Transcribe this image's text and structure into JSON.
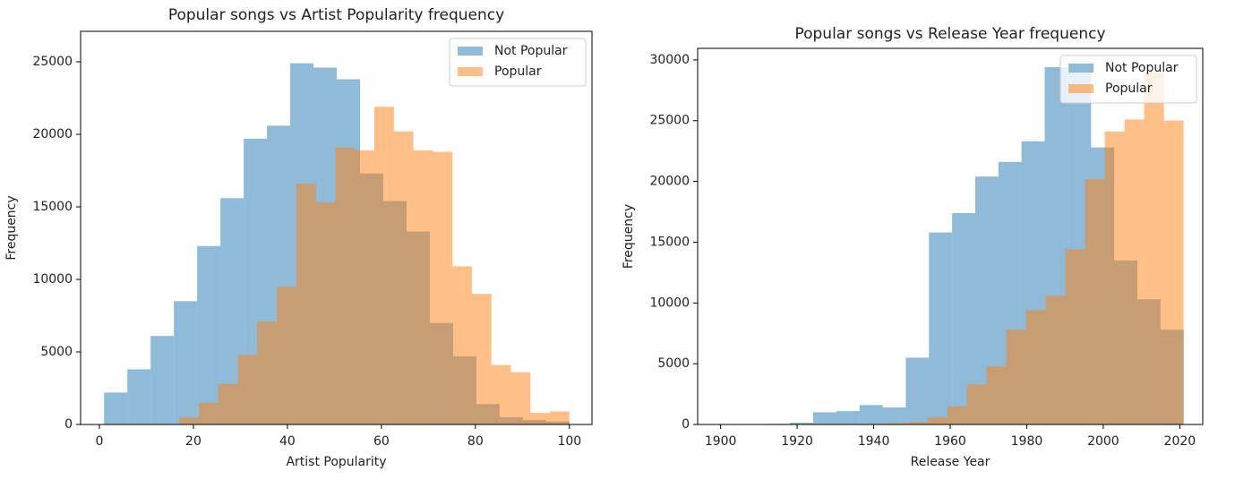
{
  "chart_data": [
    {
      "type": "histogram",
      "title": "Popular songs vs Artist Popularity frequency",
      "x_label": "Artist Popularity",
      "y_label": "Frequency",
      "xlim": [
        -4,
        104.8
      ],
      "xticks": [
        0,
        20,
        40,
        60,
        80,
        100
      ],
      "ylim": [
        0,
        27100
      ],
      "yticks": [
        0,
        5000,
        10000,
        15000,
        20000,
        25000
      ],
      "legend": "upper right",
      "opacity": 0.5,
      "series": [
        {
          "name": "Not Popular",
          "color": "#1f77b4",
          "bins": [
            1,
            5.95,
            10.9,
            15.85,
            20.8,
            25.75,
            30.7,
            35.65,
            40.6,
            45.55,
            50.5,
            55.45,
            60.4,
            65.35,
            70.3,
            75.25,
            80.2,
            85.15,
            90.1,
            95.05,
            100
          ],
          "values": [
            2200,
            3800,
            6100,
            8500,
            12300,
            15600,
            19700,
            20600,
            24900,
            24600,
            23800,
            17300,
            15400,
            13300,
            7000,
            4700,
            1400,
            500,
            300,
            200
          ]
        },
        {
          "name": "Popular",
          "color": "#ff7f0e",
          "bins": [
            17,
            21.15,
            25.3,
            29.45,
            33.6,
            37.75,
            41.9,
            46.05,
            50.2,
            54.35,
            58.5,
            62.65,
            66.8,
            70.95,
            75.1,
            79.25,
            83.4,
            87.55,
            91.7,
            95.85,
            100
          ],
          "values": [
            500,
            1500,
            2800,
            4800,
            7100,
            9500,
            16600,
            15300,
            19100,
            18900,
            21900,
            20200,
            18900,
            18800,
            10900,
            9000,
            4100,
            3600,
            800,
            900
          ]
        }
      ]
    },
    {
      "type": "histogram",
      "title": "Popular songs vs Release Year frequency",
      "x_label": "Release Year",
      "y_label": "Frequency",
      "xlim": [
        1894,
        2026
      ],
      "xticks": [
        1900,
        1920,
        1940,
        1960,
        1980,
        2000,
        2020
      ],
      "ylim": [
        0,
        30950
      ],
      "yticks": [
        0,
        5000,
        10000,
        15000,
        20000,
        25000,
        30000
      ],
      "legend": "upper right",
      "opacity": 0.5,
      "series": [
        {
          "name": "Not Popular",
          "color": "#1f77b4",
          "bins": [
            1900,
            1906.05,
            1912.1,
            1918.15,
            1924.2,
            1930.25,
            1936.3,
            1942.35,
            1948.4,
            1954.45,
            1960.5,
            1966.55,
            1972.6,
            1978.65,
            1984.7,
            1990.75,
            1996.8,
            2002.85,
            2008.9,
            2014.95,
            2021
          ],
          "values": [
            20,
            30,
            50,
            150,
            1000,
            1100,
            1600,
            1400,
            5500,
            15800,
            17400,
            20400,
            21600,
            23300,
            29400,
            29000,
            22800,
            13500,
            10300,
            7800
          ]
        },
        {
          "name": "Popular",
          "color": "#ff7f0e",
          "bins": [
            1918,
            1923.15,
            1928.3,
            1933.45,
            1938.6,
            1943.75,
            1948.9,
            1954.05,
            1959.2,
            1964.35,
            1969.5,
            1974.65,
            1979.8,
            1984.95,
            1990.1,
            1995.25,
            2000.4,
            2005.55,
            2010.7,
            2015.85,
            2021
          ],
          "values": [
            10,
            20,
            30,
            40,
            60,
            100,
            200,
            600,
            1500,
            3300,
            4800,
            7800,
            9400,
            10600,
            14400,
            20200,
            24100,
            25100,
            29000,
            25000
          ]
        }
      ]
    }
  ]
}
